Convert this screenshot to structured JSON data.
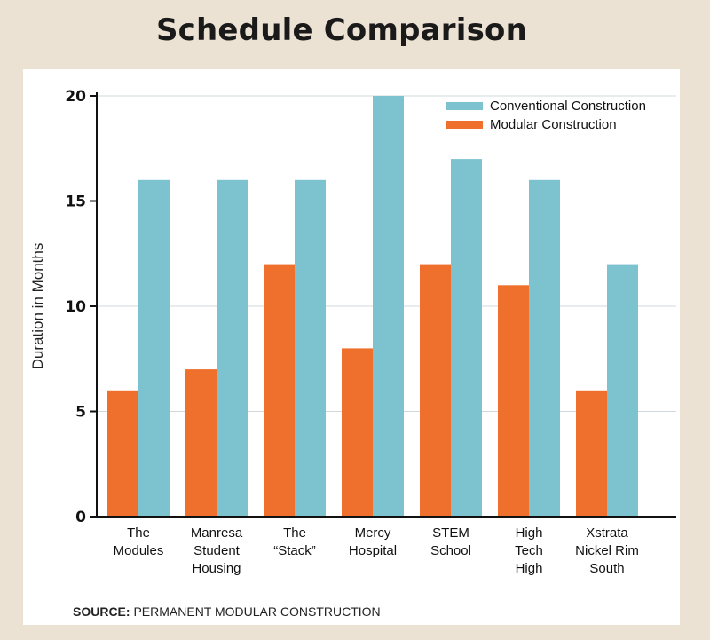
{
  "title": "Schedule Comparison",
  "source": {
    "label": "SOURCE:",
    "text": "PERMANENT MODULAR CONSTRUCTION"
  },
  "colors": {
    "conventional": "#7cc3cf",
    "modular": "#ef6f2c",
    "grid": "#cfd8dc",
    "axis": "#111111",
    "background": "#ece2d4"
  },
  "chart_data": {
    "type": "bar",
    "title": "Schedule Comparison",
    "xlabel": "",
    "ylabel": "Duration in Months",
    "ylim": [
      0,
      20
    ],
    "yticks": [
      0,
      5,
      10,
      15,
      20
    ],
    "grid": true,
    "legend_position": "top-right",
    "categories": [
      [
        "The",
        "Modules"
      ],
      [
        "Manresa",
        "Student",
        "Housing"
      ],
      [
        "The",
        "“Stack”"
      ],
      [
        "Mercy",
        "Hospital"
      ],
      [
        "STEM",
        "School"
      ],
      [
        "High",
        "Tech",
        "High"
      ],
      [
        "Xstrata",
        "Nickel Rim",
        "South"
      ]
    ],
    "series": [
      {
        "name": "Modular Construction",
        "color": "#ef6f2c",
        "values": [
          6,
          7,
          12,
          8,
          12,
          11,
          6
        ]
      },
      {
        "name": "Conventional Construction",
        "color": "#7cc3cf",
        "values": [
          16,
          16,
          16,
          20,
          17,
          16,
          12
        ]
      }
    ],
    "legend": [
      {
        "name": "Conventional Construction",
        "color": "#7cc3cf"
      },
      {
        "name": "Modular Construction",
        "color": "#ef6f2c"
      }
    ]
  }
}
